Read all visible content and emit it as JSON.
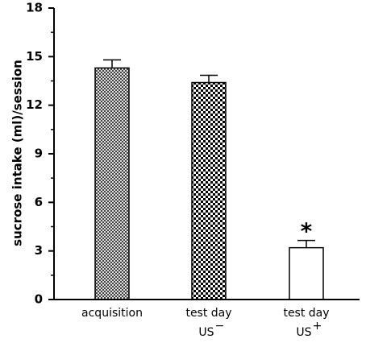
{
  "chart_data": {
    "type": "bar",
    "ylabel": "sucrose intake (ml)/session",
    "xlabel": "",
    "ylim": [
      0,
      18
    ],
    "yticks": [
      "0",
      "3",
      "6",
      "9",
      "12",
      "15",
      "18"
    ],
    "categories": [
      {
        "line1": "acquisition",
        "line2": "",
        "sup": ""
      },
      {
        "line1": "test day",
        "line2": "US",
        "sup": "−"
      },
      {
        "line1": "test day",
        "line2": "US",
        "sup": "+"
      }
    ],
    "values": [
      14.3,
      13.4,
      3.2
    ],
    "errors": [
      0.5,
      0.45,
      0.45
    ],
    "fills": [
      "fine-crosshatch",
      "checkerboard",
      "white"
    ],
    "significance": [
      "",
      "",
      "*"
    ],
    "grid": false,
    "legend": "none"
  }
}
